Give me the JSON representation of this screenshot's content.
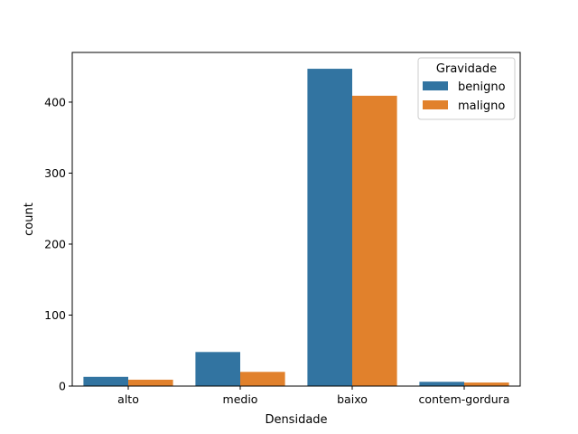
{
  "chart_data": {
    "type": "bar",
    "categories": [
      "alto",
      "medio",
      "baixo",
      "contem-gordura"
    ],
    "series": [
      {
        "name": "benigno",
        "values": [
          13,
          48,
          447,
          6
        ],
        "color": "#3274a1"
      },
      {
        "name": "maligno",
        "values": [
          9,
          20,
          409,
          5
        ],
        "color": "#e1812c"
      }
    ],
    "xlabel": "Densidade",
    "ylabel": "count",
    "ylim": [
      0,
      470
    ],
    "yticks": [
      0,
      100,
      200,
      300,
      400
    ],
    "legend": {
      "title": "Gravidade",
      "placement": "top-right"
    },
    "grid": false
  }
}
